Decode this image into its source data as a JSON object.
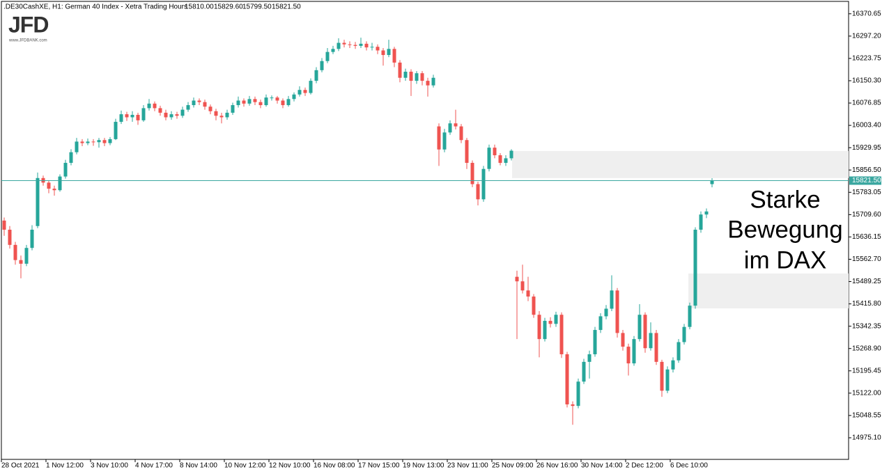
{
  "chart_data": {
    "type": "candlestick",
    "title": ".DE30CashXE, H1:  German 40 Index  - Xetra Trading Hours",
    "last_labels": [
      "15810.00",
      "15829.60",
      "15799.50",
      "15821.50"
    ],
    "logo": {
      "name": "JFD",
      "url": "www.JFDBANK.com"
    },
    "annotation": [
      "Starke",
      "Bewegung",
      "im DAX"
    ],
    "up_color": "#26a69a",
    "down_color": "#ef5350",
    "line_color": "#3aa7a0",
    "current_price": {
      "value": 15821.5,
      "label": "15821.50"
    },
    "zones": [
      {
        "from": 15830,
        "to": 15919
      },
      {
        "from": 15401,
        "to": 15516
      }
    ],
    "ylim": [
      14904,
      16416
    ],
    "yticks": [
      16370.65,
      {
        "value": 16297.2,
        "label": "16297.20"
      },
      16223.75,
      {
        "value": 16150.3,
        "label": "16150.30"
      },
      16076.85,
      {
        "value": 16003.4,
        "label": "16003.40"
      },
      15929.95,
      {
        "value": 15856.5,
        "label": "15856.50"
      },
      15783.05,
      {
        "value": 15709.6,
        "label": "15709.60"
      },
      15636.15,
      {
        "value": 15562.7,
        "label": "15562.70"
      },
      15489.25,
      {
        "value": 15415.8,
        "label": "15415.80"
      },
      15342.35,
      {
        "value": 15268.9,
        "label": "15268.90"
      },
      15195.45,
      {
        "value": 15122.0,
        "label": "15122.00"
      },
      15048.55,
      {
        "value": 14975.1,
        "label": "14975.10"
      }
    ],
    "categories": [
      "28 Oct 2021",
      null,
      null,
      null,
      null,
      null,
      null,
      null,
      "1 Nov 12:00",
      null,
      null,
      null,
      null,
      null,
      null,
      null,
      "3 Nov 10:00",
      null,
      null,
      null,
      null,
      null,
      null,
      null,
      "4 Nov 17:00",
      null,
      null,
      null,
      null,
      null,
      null,
      null,
      "8 Nov 14:00",
      null,
      null,
      null,
      null,
      null,
      null,
      null,
      "10 Nov 12:00",
      null,
      null,
      null,
      null,
      null,
      null,
      null,
      "12 Nov 10:00",
      null,
      null,
      null,
      null,
      null,
      null,
      null,
      "16 Nov 08:00",
      null,
      null,
      null,
      null,
      null,
      null,
      null,
      "17 Nov 15:00",
      null,
      null,
      null,
      null,
      null,
      null,
      null,
      "19 Nov 13:00",
      null,
      null,
      null,
      null,
      null,
      null,
      null,
      "23 Nov 11:00",
      null,
      null,
      null,
      null,
      null,
      null,
      null,
      "25 Nov 09:00",
      null,
      null,
      null,
      null,
      null,
      null,
      null,
      "26 Nov 16:00",
      null,
      null,
      null,
      null,
      null,
      null,
      null,
      "30 Nov 14:00",
      null,
      null,
      null,
      null,
      null,
      null,
      null,
      "2 Dec 12:00",
      null,
      null,
      null,
      null,
      null,
      null,
      null,
      "6 Dec 10:00",
      null,
      null,
      null,
      null,
      null,
      null,
      null
    ],
    "open": [
      15690,
      15660,
      15610,
      15560,
      15548,
      15600,
      15672,
      15830,
      15815,
      15795,
      15790,
      15835,
      15880,
      15915,
      15950,
      15945,
      15950,
      15948,
      15955,
      15945,
      15958,
      16015,
      16040,
      16030,
      16038,
      16020,
      16060,
      16075,
      16060,
      16045,
      16030,
      16040,
      16035,
      16055,
      16070,
      16085,
      16080,
      16065,
      16050,
      16035,
      16030,
      16045,
      16070,
      16085,
      16075,
      16090,
      16080,
      16070,
      16095,
      16095,
      16085,
      16070,
      16090,
      16105,
      16120,
      16110,
      16150,
      16185,
      16215,
      16245,
      16255,
      16275,
      16270,
      16268,
      16265,
      16272,
      16260,
      16262,
      16250,
      16235,
      16255,
      16210,
      16160,
      16180,
      16150,
      16175,
      16150,
      16135,
      16000,
      15924,
      15980,
      16010,
      16000,
      15955,
      15880,
      15810,
      15760,
      15860,
      15930,
      15905,
      15880,
      15895,
      15505,
      15490,
      15460,
      15440,
      15380,
      15300,
      15360,
      15350,
      15380,
      15250,
      15085,
      15080,
      15160,
      15225,
      15250,
      15330,
      15375,
      15400,
      15460,
      15320,
      15275,
      15220,
      15300,
      15380,
      15270,
      15320,
      15225,
      15130,
      15200,
      15230,
      15290,
      15340,
      15410,
      15660,
      15710,
      15810
    ],
    "high": [
      15700,
      15672,
      15620,
      15575,
      15610,
      15675,
      15848,
      15838,
      15822,
      15805,
      15842,
      15890,
      15925,
      15962,
      15958,
      15960,
      15958,
      15962,
      15962,
      15965,
      16025,
      16052,
      16048,
      16050,
      16045,
      16070,
      16090,
      16082,
      16068,
      16055,
      16050,
      16048,
      16065,
      16080,
      16095,
      16092,
      16088,
      16072,
      16058,
      16045,
      16055,
      16078,
      16098,
      16092,
      16100,
      16098,
      16088,
      16105,
      16102,
      16100,
      16092,
      16100,
      16112,
      16132,
      16128,
      16158,
      16195,
      16225,
      16258,
      16265,
      16290,
      16285,
      16280,
      16278,
      16292,
      16280,
      16275,
      16270,
      16258,
      16285,
      16262,
      16218,
      16190,
      16188,
      16182,
      16182,
      16160,
      16170,
      16010,
      15992,
      16020,
      16055,
      16008,
      15962,
      15888,
      15818,
      15870,
      15940,
      15940,
      15912,
      15905,
      15925,
      15525,
      15545,
      15505,
      15448,
      15392,
      15370,
      15372,
      15390,
      15388,
      15258,
      15095,
      15170,
      15235,
      15262,
      15340,
      15385,
      15412,
      15510,
      15468,
      15330,
      15285,
      15310,
      15415,
      15388,
      15355,
      15330,
      15232,
      15210,
      15240,
      15300,
      15350,
      15420,
      15668,
      15720,
      15730,
      15829.6
    ],
    "low": [
      15640,
      15598,
      15545,
      15500,
      15540,
      15592,
      15665,
      15805,
      15780,
      15772,
      15785,
      15828,
      15872,
      15908,
      15935,
      15938,
      15936,
      15930,
      15935,
      15938,
      15955,
      16008,
      16018,
      16015,
      16005,
      16015,
      16052,
      16050,
      16035,
      16020,
      16022,
      16025,
      16028,
      16048,
      16062,
      16070,
      16055,
      16040,
      16020,
      16010,
      16022,
      16038,
      16062,
      16065,
      16068,
      16070,
      16060,
      16065,
      16085,
      16075,
      16060,
      16065,
      16082,
      16098,
      16100,
      16105,
      16142,
      16178,
      16208,
      16238,
      16248,
      16260,
      16258,
      16255,
      16258,
      16250,
      16250,
      16238,
      16200,
      16228,
      16195,
      16145,
      16150,
      16100,
      16140,
      16135,
      16098,
      16128,
      15870,
      15915,
      15972,
      15990,
      15945,
      15860,
      15800,
      15740,
      15752,
      15852,
      15895,
      15872,
      15870,
      15888,
      15300,
      15450,
      15425,
      15370,
      15240,
      15292,
      15338,
      15340,
      15238,
      15075,
      15018,
      15072,
      15152,
      15170,
      15242,
      15320,
      15365,
      15392,
      15305,
      15262,
      15180,
      15212,
      15292,
      15255,
      15262,
      15215,
      15110,
      15122,
      15190,
      15222,
      15282,
      15332,
      15400,
      15650,
      15698,
      15799.5
    ],
    "close": [
      15660,
      15610,
      15560,
      15548,
      15600,
      15660,
      15830,
      15815,
      15795,
      15790,
      15835,
      15880,
      15915,
      15950,
      15945,
      15950,
      15948,
      15955,
      15945,
      15958,
      16015,
      16040,
      16030,
      16038,
      16020,
      16060,
      16075,
      16060,
      16045,
      16030,
      16040,
      16035,
      16055,
      16070,
      16085,
      16080,
      16065,
      16050,
      16035,
      16030,
      16045,
      16070,
      16085,
      16075,
      16090,
      16080,
      16070,
      16095,
      16095,
      16085,
      16070,
      16090,
      16105,
      16120,
      16110,
      16150,
      16185,
      16215,
      16245,
      16255,
      16275,
      16270,
      16268,
      16265,
      16272,
      16260,
      16262,
      16250,
      16235,
      16255,
      16210,
      16160,
      16180,
      16150,
      16175,
      16150,
      16135,
      16160,
      15924,
      15980,
      16010,
      16000,
      15955,
      15880,
      15810,
      15760,
      15860,
      15930,
      15905,
      15880,
      15895,
      15920,
      15490,
      15460,
      15440,
      15380,
      15300,
      15360,
      15350,
      15380,
      15250,
      15085,
      15080,
      15160,
      15225,
      15250,
      15330,
      15375,
      15400,
      15460,
      15320,
      15275,
      15220,
      15300,
      15380,
      15270,
      15320,
      15225,
      15130,
      15200,
      15230,
      15290,
      15340,
      15410,
      15660,
      15710,
      15720,
      15821.5
    ]
  }
}
